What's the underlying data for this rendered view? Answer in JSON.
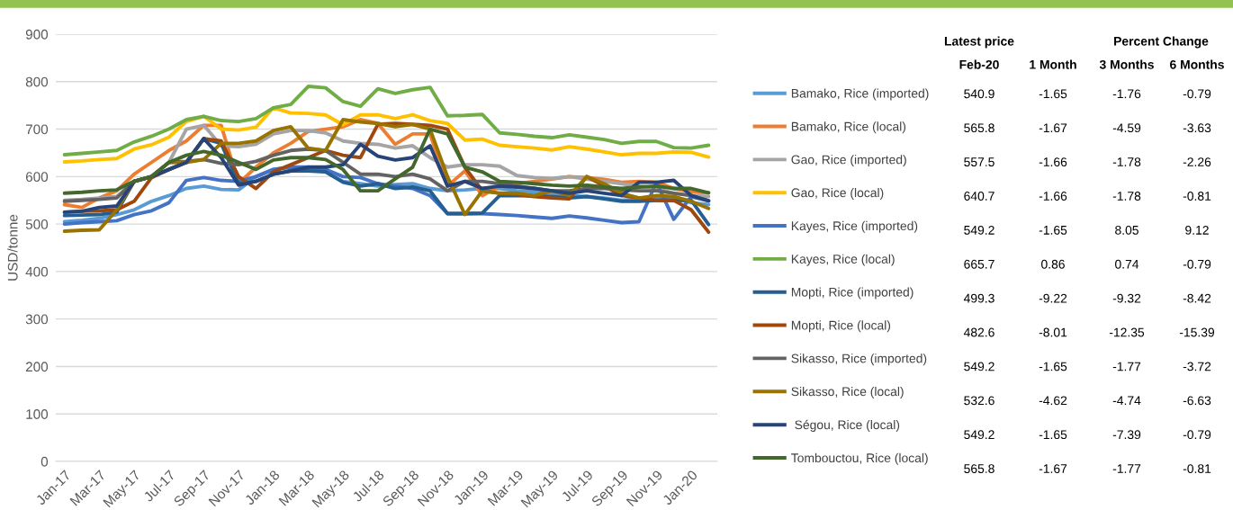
{
  "chart_data": {
    "type": "line",
    "ylabel": "USD/tonne",
    "ylim": [
      0,
      900
    ],
    "yticks": [
      0,
      100,
      200,
      300,
      400,
      500,
      600,
      700,
      800,
      900
    ],
    "grid": "y",
    "legend": "right",
    "marker": "none",
    "line_style": "solid",
    "categories": [
      "Jan-17",
      null,
      "Mar-17",
      null,
      "May-17",
      null,
      "Jul-17",
      null,
      "Sep-17",
      null,
      "Nov-17",
      null,
      "Jan-18",
      null,
      "Mar-18",
      null,
      "May-18",
      null,
      "Jul-18",
      null,
      "Sep-18",
      null,
      "Nov-18",
      null,
      "Jan-19",
      null,
      "Mar-19",
      null,
      "May-19",
      null,
      "Jul-19",
      null,
      "Sep-19",
      null,
      "Nov-19",
      null,
      "Jan-20",
      null
    ],
    "series": [
      {
        "name": "Bamako, Rice (imported)",
        "color": "#5b9bd5",
        "values": [
          505,
          508,
          512,
          520,
          530,
          548,
          560,
          575,
          580,
          573,
          572,
          600,
          615,
          620,
          615,
          610,
          590,
          585,
          580,
          583,
          585,
          575,
          570,
          572,
          575,
          575,
          570,
          568,
          565,
          560,
          558,
          555,
          550,
          552,
          555,
          555,
          545,
          541
        ]
      },
      {
        "name": "Bamako, Rice (local)",
        "color": "#ed7d31",
        "values": [
          541,
          535,
          555,
          570,
          605,
          630,
          655,
          675,
          708,
          708,
          585,
          620,
          650,
          670,
          695,
          700,
          705,
          720,
          712,
          668,
          690,
          690,
          580,
          612,
          560,
          580,
          585,
          590,
          595,
          600,
          598,
          594,
          588,
          590,
          588,
          575,
          568,
          566
        ]
      },
      {
        "name": "Gao, Rice (imported)",
        "color": "#a5a5a5",
        "values": [
          550,
          552,
          555,
          558,
          590,
          600,
          630,
          700,
          708,
          665,
          663,
          668,
          690,
          697,
          697,
          692,
          675,
          670,
          668,
          660,
          665,
          640,
          620,
          625,
          625,
          622,
          602,
          598,
          596,
          600,
          595,
          590,
          585,
          580,
          575,
          565,
          560,
          558
        ]
      },
      {
        "name": "Gao, Rice (local)",
        "color": "#ffc000",
        "values": [
          631,
          633,
          636,
          638,
          658,
          667,
          683,
          716,
          727,
          700,
          698,
          704,
          745,
          734,
          733,
          730,
          709,
          730,
          730,
          722,
          730,
          718,
          712,
          677,
          679,
          666,
          663,
          660,
          656,
          663,
          658,
          652,
          646,
          649,
          649,
          652,
          651,
          641
        ]
      },
      {
        "name": "Kayes, Rice (imported)",
        "color": "#4472c4",
        "values": [
          500,
          503,
          505,
          507,
          520,
          528,
          545,
          592,
          598,
          592,
          590,
          600,
          615,
          620,
          620,
          615,
          600,
          598,
          585,
          580,
          575,
          560,
          522,
          522,
          522,
          520,
          518,
          515,
          512,
          517,
          513,
          508,
          503,
          505,
          588,
          510,
          558,
          549
        ]
      },
      {
        "name": "Kayes, Rice (local)",
        "color": "#70ad47",
        "values": [
          646,
          649,
          652,
          655,
          673,
          685,
          700,
          720,
          727,
          718,
          716,
          722,
          745,
          752,
          790,
          787,
          758,
          748,
          785,
          775,
          783,
          788,
          728,
          729,
          731,
          692,
          689,
          685,
          682,
          688,
          683,
          678,
          670,
          674,
          674,
          661,
          660,
          666
        ]
      },
      {
        "name": "Mopti, Rice (imported)",
        "color": "#255e91",
        "values": [
          518,
          519,
          520,
          525,
          590,
          600,
          615,
          630,
          680,
          670,
          585,
          590,
          605,
          612,
          612,
          610,
          588,
          580,
          585,
          575,
          578,
          570,
          522,
          522,
          523,
          560,
          560,
          560,
          558,
          555,
          558,
          553,
          548,
          548,
          550,
          550,
          550,
          499
        ]
      },
      {
        "name": "Mopti, Rice (local)",
        "color": "#9e480e",
        "values": [
          525,
          527,
          528,
          530,
          548,
          598,
          615,
          630,
          680,
          675,
          600,
          575,
          610,
          625,
          640,
          655,
          645,
          640,
          710,
          712,
          710,
          708,
          700,
          620,
          570,
          565,
          562,
          558,
          555,
          553,
          600,
          580,
          560,
          555,
          550,
          550,
          530,
          483
        ]
      },
      {
        "name": "Sikasso, Rice (imported)",
        "color": "#636363",
        "values": [
          548,
          550,
          552,
          555,
          590,
          600,
          630,
          632,
          636,
          628,
          625,
          632,
          645,
          655,
          658,
          655,
          630,
          605,
          605,
          600,
          605,
          595,
          570,
          590,
          590,
          585,
          580,
          575,
          570,
          570,
          575,
          575,
          572,
          570,
          570,
          565,
          560,
          549
        ]
      },
      {
        "name": "Sikasso, Rice (local)",
        "color": "#997300",
        "values": [
          485,
          487,
          488,
          530,
          590,
          600,
          630,
          630,
          636,
          670,
          670,
          675,
          697,
          705,
          660,
          655,
          720,
          715,
          712,
          705,
          710,
          700,
          600,
          520,
          570,
          565,
          565,
          560,
          570,
          560,
          600,
          585,
          565,
          555,
          560,
          558,
          548,
          533
        ]
      },
      {
        "name": " Ségou, Rice (local)",
        "color": "#264478",
        "values": [
          525,
          527,
          535,
          538,
          590,
          600,
          615,
          630,
          680,
          640,
          582,
          590,
          605,
          612,
          620,
          620,
          625,
          668,
          643,
          635,
          640,
          665,
          580,
          590,
          575,
          580,
          578,
          575,
          570,
          565,
          570,
          565,
          560,
          588,
          588,
          592,
          560,
          549
        ]
      },
      {
        "name": "Tombouctou, Rice (local)",
        "color": "#43682b",
        "values": [
          565,
          567,
          570,
          572,
          590,
          600,
          630,
          645,
          653,
          645,
          630,
          615,
          635,
          640,
          640,
          636,
          615,
          570,
          570,
          595,
          620,
          700,
          690,
          620,
          610,
          590,
          588,
          585,
          582,
          580,
          582,
          578,
          575,
          578,
          580,
          575,
          575,
          566
        ]
      }
    ],
    "annotations": [
      "Latest price",
      "Percent Change",
      "Feb-20",
      "1 Month",
      "3 Months",
      "6 Months",
      "540.9",
      "-1.65",
      "-1.76",
      "-0.79",
      "565.8",
      "-1.67",
      "-4.59",
      "-3.63",
      "557.5",
      "-1.66",
      "-1.78",
      "-2.26",
      "640.7",
      "-1.66",
      "-1.78",
      "-0.81",
      "549.2",
      "-1.65",
      "8.05",
      "9.12",
      "665.7",
      "0.86",
      "0.74",
      "-0.79",
      "499.3",
      "-9.22",
      "-9.32",
      "-8.42",
      "482.6",
      "-8.01",
      "-12.35",
      "-15.39",
      "549.2",
      "-1.65",
      "-1.77",
      "-3.72",
      "532.6",
      "-4.62",
      "-4.74",
      "-6.63",
      "549.2",
      "-1.65",
      "-7.39",
      "-0.79",
      "565.8",
      "-1.67",
      "-1.77",
      "-0.81"
    ]
  }
}
